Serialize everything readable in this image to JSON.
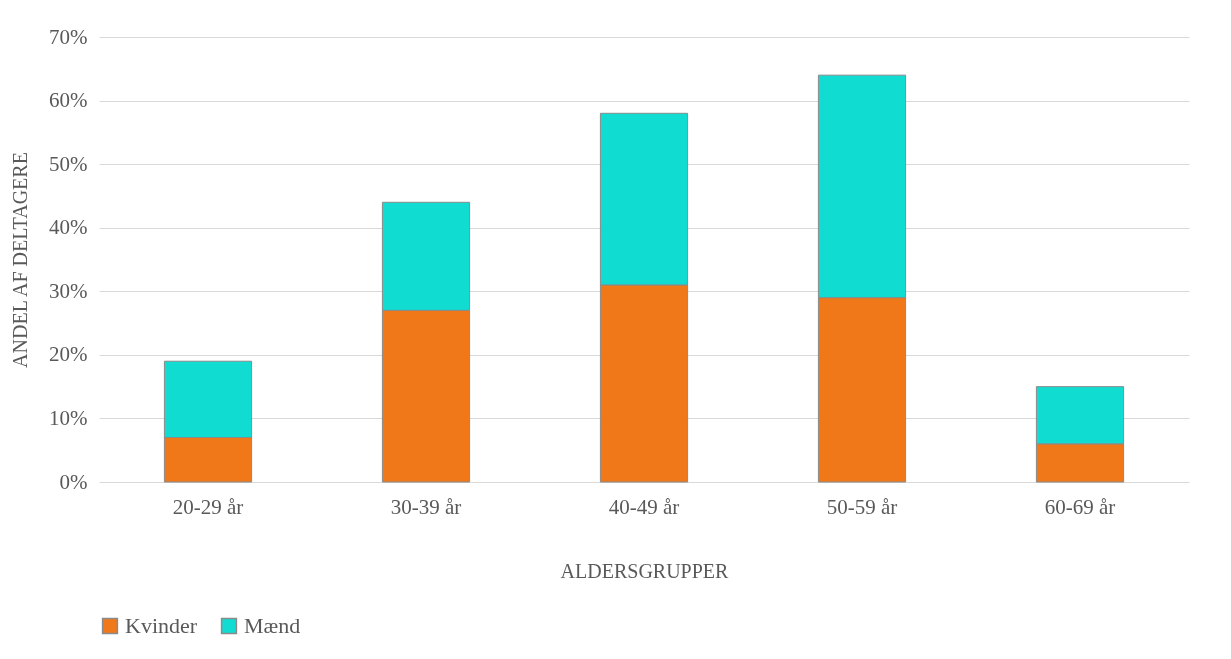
{
  "chart_data": {
    "type": "bar",
    "stacked": true,
    "xlabel": "ALDERSGRUPPER",
    "ylabel": "ANDEL AF DELTAGERE",
    "categories": [
      "20-29 år",
      "30-39 år",
      "40-49 år",
      "50-59 år",
      "60-69 år"
    ],
    "series": [
      {
        "name": "Kvinder",
        "color": "#f07818",
        "values": [
          7,
          27,
          31,
          29,
          6
        ]
      },
      {
        "name": "Mænd",
        "color": "#10dcd2",
        "values": [
          12,
          17,
          27,
          35,
          9
        ]
      }
    ],
    "ylim": [
      0,
      70
    ],
    "yticks": [
      {
        "value": 0,
        "label": "0%"
      },
      {
        "value": 10,
        "label": "10%"
      },
      {
        "value": 20,
        "label": "20%"
      },
      {
        "value": 30,
        "label": "30%"
      },
      {
        "value": 40,
        "label": "40%"
      },
      {
        "value": 50,
        "label": "50%"
      },
      {
        "value": 60,
        "label": "60%"
      },
      {
        "value": 70,
        "label": "70%"
      }
    ],
    "grid": "y",
    "legend": "bottom"
  }
}
